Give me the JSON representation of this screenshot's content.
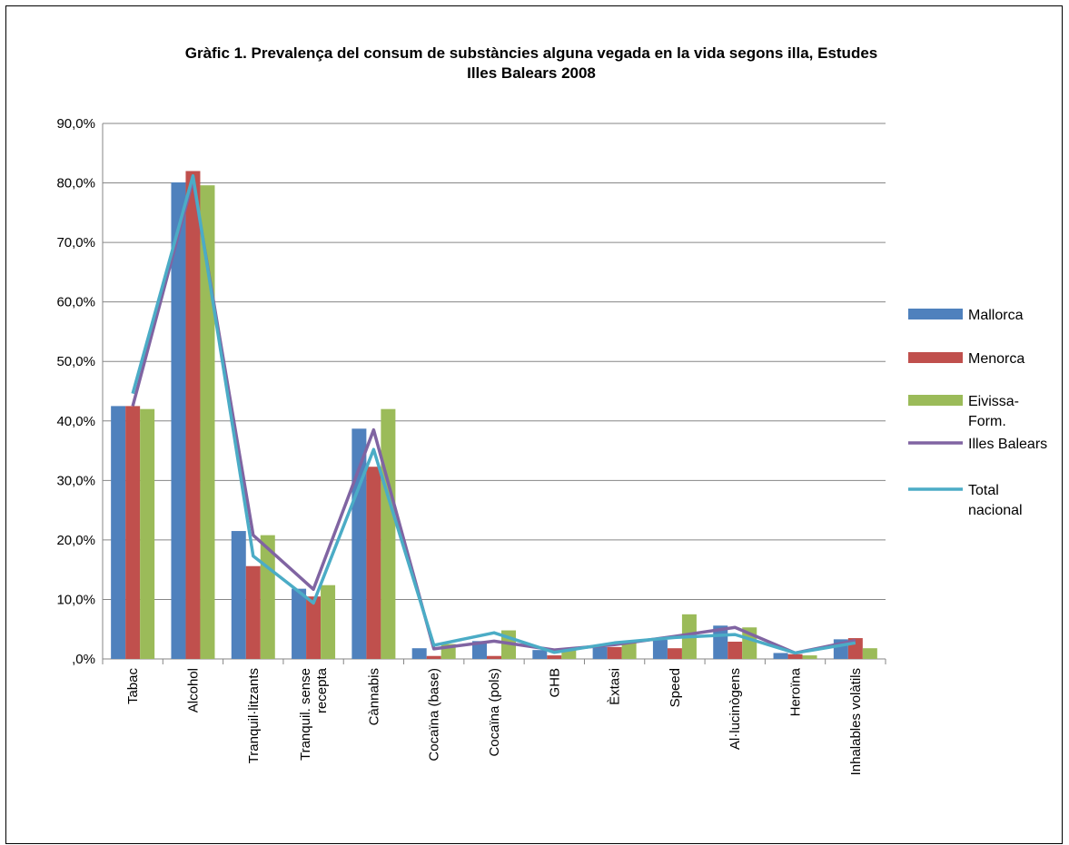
{
  "chart_data": {
    "type": "bar",
    "title_line1": "Gràfic 1. Prevalença del consum de substàncies alguna vegada en la vida segons illa, Estudes",
    "title_line2": "Illes Balears 2008",
    "categories": [
      "Tabac",
      "Alcohol",
      "Tranquil·litzants",
      "Tranquil. sense recepta",
      "Cànnabis",
      "Cocaïna (base)",
      "Cocaïna (pols)",
      "GHB",
      "Èxtasi",
      "Speed",
      "Al·lucinògens",
      "Heroïna",
      "Inhalables volàtils"
    ],
    "category_label_lines": [
      [
        "Tabac"
      ],
      [
        "Alcohol"
      ],
      [
        "Tranquil·litzants"
      ],
      [
        "Tranquil. sense",
        "recepta"
      ],
      [
        "Cànnabis"
      ],
      [
        "Cocaïna (base)"
      ],
      [
        "Cocaïna (pols)"
      ],
      [
        "GHB"
      ],
      [
        "Èxtasi"
      ],
      [
        "Speed"
      ],
      [
        "Al·lucinògens"
      ],
      [
        "Heroïna"
      ],
      [
        "Inhalables volàtils"
      ]
    ],
    "yticks": [
      ",0%",
      "10,0%",
      "20,0%",
      "30,0%",
      "40,0%",
      "50,0%",
      "60,0%",
      "70,0%",
      "80,0%",
      "90,0%"
    ],
    "ylim": [
      0,
      90
    ],
    "grid": true,
    "legend_position": "right",
    "bar_series": [
      {
        "name": "Mallorca",
        "name_lines": [
          "Mallorca"
        ],
        "color": "#4f81bd",
        "values": [
          42.5,
          80.1,
          21.5,
          11.8,
          38.7,
          1.8,
          3.0,
          1.5,
          2.0,
          3.2,
          5.6,
          1.0,
          3.3
        ]
      },
      {
        "name": "Menorca",
        "name_lines": [
          "Menorca"
        ],
        "color": "#c0504d",
        "values": [
          42.5,
          82.0,
          15.6,
          10.5,
          32.3,
          0.5,
          0.5,
          0.6,
          2.0,
          1.8,
          2.9,
          0.8,
          3.5
        ]
      },
      {
        "name": "Eivissa-Form.",
        "name_lines": [
          "Eivissa-",
          "Form."
        ],
        "color": "#9bbb59",
        "values": [
          42.0,
          79.6,
          20.8,
          12.4,
          42.0,
          2.5,
          4.8,
          1.8,
          2.8,
          7.5,
          5.3,
          0.6,
          1.8
        ]
      }
    ],
    "line_series": [
      {
        "name": "Illes Balears",
        "name_lines": [
          "Illes Balears"
        ],
        "color": "#8064a2",
        "values": [
          42.5,
          80.5,
          20.8,
          11.7,
          38.5,
          1.7,
          3.0,
          1.5,
          2.4,
          3.8,
          5.3,
          1.0,
          3.1
        ]
      },
      {
        "name": "Total nacional",
        "name_lines": [
          "Total",
          "nacional"
        ],
        "color": "#4bacc6",
        "values": [
          44.6,
          81.2,
          17.3,
          9.4,
          35.2,
          2.3,
          4.4,
          1.1,
          2.7,
          3.6,
          4.1,
          1.0,
          2.7
        ]
      }
    ]
  }
}
